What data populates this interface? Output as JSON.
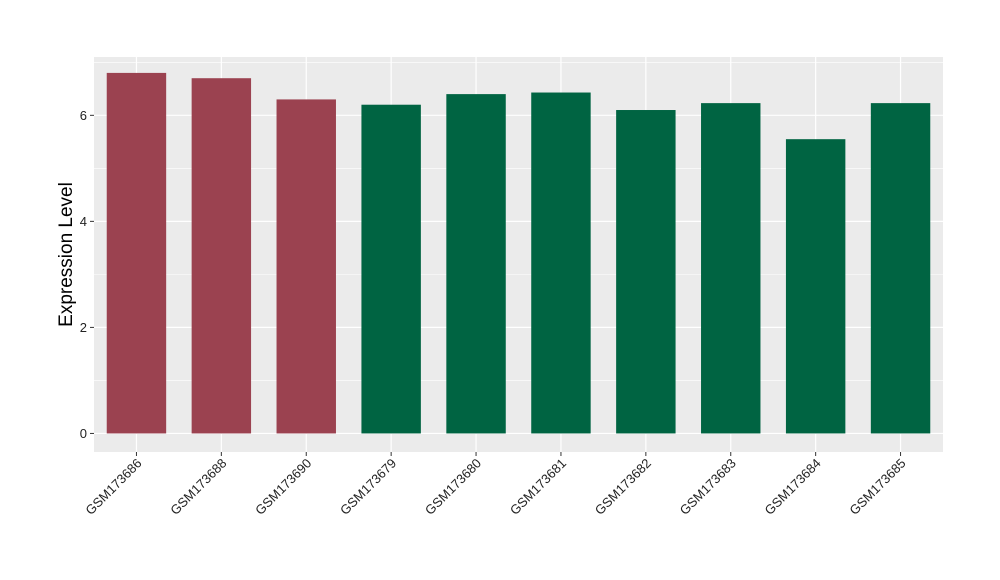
{
  "chart_data": {
    "type": "bar",
    "title": "",
    "xlabel": "",
    "ylabel": "Expression Level",
    "categories": [
      "GSM173686",
      "GSM173688",
      "GSM173690",
      "GSM173679",
      "GSM173680",
      "GSM173681",
      "GSM173682",
      "GSM173683",
      "GSM173684",
      "GSM173685"
    ],
    "values": [
      6.8,
      6.7,
      6.3,
      6.2,
      6.4,
      6.43,
      6.1,
      6.23,
      5.55,
      6.23
    ],
    "bar_colors": [
      "#9b4250",
      "#9b4250",
      "#9b4250",
      "#006442",
      "#006442",
      "#006442",
      "#006442",
      "#006442",
      "#006442",
      "#006442"
    ],
    "ylim": [
      -0.35,
      7.1
    ],
    "yticks": [
      0,
      2,
      4,
      6
    ],
    "grid": true,
    "background": "#ebebeb",
    "grid_color": "#ffffff"
  }
}
